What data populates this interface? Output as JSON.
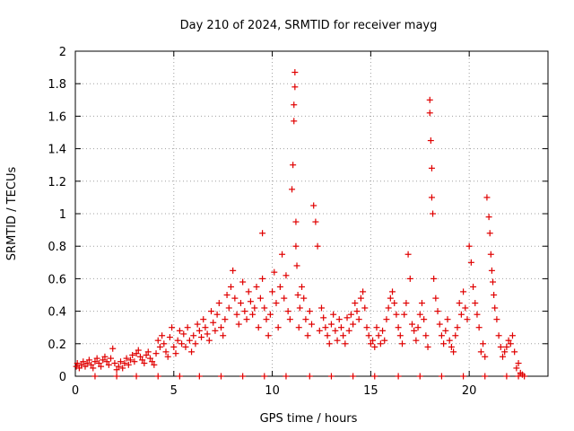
{
  "chart_data": {
    "type": "scatter",
    "title": "Day 210 of 2024, SRMTID for receiver mayg",
    "xlabel": "GPS time / hours",
    "ylabel": "SRMTID / TECUs",
    "xlim": [
      0,
      24
    ],
    "ylim": [
      0,
      2
    ],
    "xticks": [
      0,
      5,
      10,
      15,
      20
    ],
    "yticks": [
      0,
      0.2,
      0.4,
      0.6,
      0.8,
      1,
      1.2,
      1.4,
      1.6,
      1.8,
      2
    ],
    "xtick_labels": [
      "0",
      "5",
      "10",
      "15",
      "20"
    ],
    "ytick_labels": [
      "0",
      "0.2",
      "0.4",
      "0.6",
      "0.8",
      "1",
      "1.2",
      "1.4",
      "1.6",
      "1.8",
      "2"
    ],
    "grid": true,
    "marker": "+",
    "color": "#e00000",
    "series": [
      {
        "name": "SRMTID",
        "x": [
          0.05,
          0.1,
          0.2,
          0.3,
          0.4,
          0.5,
          0.6,
          0.7,
          0.8,
          0.9,
          1.0,
          1.1,
          1.2,
          1.3,
          1.4,
          1.5,
          1.6,
          1.7,
          1.8,
          1.9,
          2.0,
          2.1,
          2.2,
          2.3,
          2.4,
          2.5,
          2.6,
          2.7,
          2.8,
          2.9,
          3.0,
          3.1,
          3.2,
          3.3,
          3.4,
          3.5,
          3.6,
          3.7,
          3.8,
          3.9,
          4.0,
          4.1,
          4.2,
          4.3,
          4.4,
          4.5,
          4.6,
          4.7,
          4.8,
          4.9,
          5.0,
          5.1,
          5.2,
          5.3,
          5.4,
          5.5,
          5.6,
          5.7,
          5.8,
          5.9,
          6.0,
          6.1,
          6.2,
          6.3,
          6.4,
          6.5,
          6.6,
          6.7,
          6.8,
          6.9,
          7.0,
          7.1,
          7.2,
          7.3,
          7.4,
          7.5,
          7.6,
          7.7,
          7.8,
          7.9,
          8.0,
          8.1,
          8.2,
          8.3,
          8.4,
          8.5,
          8.6,
          8.7,
          8.8,
          8.9,
          9.0,
          9.1,
          9.2,
          9.3,
          9.4,
          9.5,
          9.5,
          9.6,
          9.7,
          9.8,
          9.9,
          10.0,
          10.1,
          10.2,
          10.3,
          10.4,
          10.5,
          10.6,
          10.7,
          10.8,
          10.9,
          11.0,
          11.05,
          11.1,
          11.1,
          11.15,
          11.15,
          11.2,
          11.2,
          11.25,
          11.3,
          11.35,
          11.4,
          11.5,
          11.6,
          11.7,
          11.8,
          11.9,
          12.0,
          12.1,
          12.2,
          12.3,
          12.4,
          12.5,
          12.6,
          12.7,
          12.8,
          12.9,
          13.0,
          13.1,
          13.2,
          13.3,
          13.4,
          13.5,
          13.6,
          13.7,
          13.8,
          13.9,
          14.0,
          14.1,
          14.2,
          14.3,
          14.4,
          14.5,
          14.6,
          14.7,
          14.8,
          14.9,
          15.0,
          15.1,
          15.2,
          15.3,
          15.4,
          15.5,
          15.6,
          15.7,
          15.8,
          15.9,
          16.0,
          16.1,
          16.2,
          16.3,
          16.4,
          16.5,
          16.6,
          16.7,
          16.8,
          16.9,
          17.0,
          17.1,
          17.2,
          17.3,
          17.4,
          17.5,
          17.6,
          17.7,
          17.8,
          17.9,
          18.0,
          18.0,
          18.05,
          18.1,
          18.1,
          18.15,
          18.2,
          18.3,
          18.4,
          18.5,
          18.6,
          18.7,
          18.8,
          18.9,
          19.0,
          19.1,
          19.2,
          19.3,
          19.4,
          19.5,
          19.6,
          19.7,
          19.8,
          19.9,
          20.0,
          20.1,
          20.2,
          20.3,
          20.4,
          20.5,
          20.6,
          20.7,
          20.8,
          20.9,
          21.0,
          21.05,
          21.1,
          21.15,
          21.2,
          21.25,
          21.3,
          21.4,
          21.5,
          21.6,
          21.7,
          21.8,
          21.9,
          22.0,
          22.1,
          22.2,
          22.3,
          22.4,
          22.5,
          22.6,
          22.7,
          1.0,
          2.1,
          3.1,
          4.2,
          5.3,
          6.3,
          7.4,
          8.5,
          9.6,
          10.7,
          11.9,
          13.0,
          14.1,
          15.2,
          16.4,
          17.5,
          18.6,
          19.7,
          20.8,
          21.9,
          22.5,
          22.8
        ],
        "y": [
          0.06,
          0.08,
          0.05,
          0.07,
          0.09,
          0.06,
          0.08,
          0.1,
          0.07,
          0.05,
          0.09,
          0.11,
          0.08,
          0.06,
          0.1,
          0.12,
          0.09,
          0.07,
          0.11,
          0.17,
          0.08,
          0.04,
          0.06,
          0.09,
          0.05,
          0.08,
          0.11,
          0.07,
          0.1,
          0.13,
          0.09,
          0.14,
          0.16,
          0.12,
          0.1,
          0.08,
          0.13,
          0.15,
          0.11,
          0.09,
          0.07,
          0.14,
          0.22,
          0.18,
          0.25,
          0.2,
          0.15,
          0.12,
          0.24,
          0.3,
          0.18,
          0.14,
          0.22,
          0.28,
          0.2,
          0.26,
          0.18,
          0.3,
          0.22,
          0.15,
          0.25,
          0.2,
          0.32,
          0.28,
          0.24,
          0.35,
          0.3,
          0.26,
          0.22,
          0.4,
          0.33,
          0.28,
          0.38,
          0.45,
          0.3,
          0.25,
          0.35,
          0.5,
          0.42,
          0.55,
          0.65,
          0.48,
          0.38,
          0.32,
          0.45,
          0.58,
          0.4,
          0.35,
          0.52,
          0.46,
          0.38,
          0.42,
          0.55,
          0.3,
          0.48,
          0.88,
          0.6,
          0.42,
          0.35,
          0.25,
          0.38,
          0.52,
          0.64,
          0.45,
          0.3,
          0.55,
          0.75,
          0.48,
          0.62,
          0.4,
          0.35,
          1.15,
          1.3,
          1.57,
          1.67,
          1.78,
          1.87,
          0.95,
          0.8,
          0.68,
          0.5,
          0.3,
          0.42,
          0.55,
          0.48,
          0.35,
          0.25,
          0.4,
          0.32,
          1.05,
          0.95,
          0.8,
          0.28,
          0.42,
          0.36,
          0.3,
          0.25,
          0.2,
          0.32,
          0.38,
          0.28,
          0.22,
          0.35,
          0.3,
          0.25,
          0.2,
          0.36,
          0.28,
          0.38,
          0.32,
          0.45,
          0.4,
          0.35,
          0.48,
          0.52,
          0.42,
          0.3,
          0.25,
          0.2,
          0.22,
          0.18,
          0.3,
          0.25,
          0.2,
          0.28,
          0.22,
          0.35,
          0.42,
          0.48,
          0.52,
          0.45,
          0.38,
          0.3,
          0.25,
          0.2,
          0.38,
          0.45,
          0.75,
          0.6,
          0.32,
          0.28,
          0.22,
          0.3,
          0.38,
          0.45,
          0.35,
          0.25,
          0.18,
          1.7,
          1.62,
          1.45,
          1.28,
          1.1,
          1.0,
          0.6,
          0.48,
          0.4,
          0.32,
          0.25,
          0.2,
          0.28,
          0.35,
          0.22,
          0.18,
          0.15,
          0.25,
          0.3,
          0.45,
          0.38,
          0.52,
          0.42,
          0.35,
          0.8,
          0.7,
          0.55,
          0.45,
          0.38,
          0.3,
          0.15,
          0.2,
          0.12,
          1.1,
          0.98,
          0.88,
          0.75,
          0.65,
          0.58,
          0.5,
          0.42,
          0.35,
          0.25,
          0.18,
          0.12,
          0.15,
          0.18,
          0.22,
          0.2,
          0.25,
          0.15,
          0.05,
          0.08,
          0.02,
          0.01,
          0.0,
          0.0,
          0.0,
          0.0,
          0.0,
          0.0,
          0.0,
          0.0,
          0.0,
          0.0,
          0.0,
          0.0,
          0.0,
          0.0,
          0.0,
          0.0,
          0.0,
          0.0,
          0.0,
          0.0,
          0.0,
          0.0
        ]
      }
    ]
  }
}
